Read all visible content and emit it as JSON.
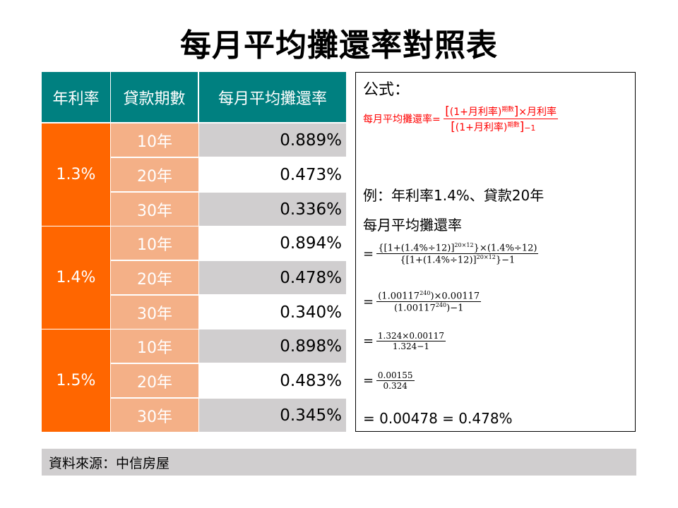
{
  "title": "每月平均攤還率對照表",
  "table": {
    "headers": [
      "年利率",
      "貸款期數",
      "每月平均攤還率"
    ],
    "groups": [
      {
        "rate": "1.3%",
        "rows": [
          {
            "term": "10年",
            "value": "0.889%"
          },
          {
            "term": "20年",
            "value": "0.473%"
          },
          {
            "term": "30年",
            "value": "0.336%"
          }
        ]
      },
      {
        "rate": "1.4%",
        "rows": [
          {
            "term": "10年",
            "value": "0.894%"
          },
          {
            "term": "20年",
            "value": "0.478%"
          },
          {
            "term": "30年",
            "value": "0.340%"
          }
        ]
      },
      {
        "rate": "1.5%",
        "rows": [
          {
            "term": "10年",
            "value": "0.898%"
          },
          {
            "term": "20年",
            "value": "0.483%"
          },
          {
            "term": "30年",
            "value": "0.345%"
          }
        ]
      }
    ],
    "colors": {
      "header": "#008080",
      "rate": "#ff6600",
      "term": "#f4b087",
      "stripe": "#d0cecf"
    }
  },
  "formula": {
    "label": "公式：",
    "lhs": "每月平均攤還率=",
    "num_open": "(1+月利率)",
    "num_exp": "期數",
    "num_tail": "×月利率",
    "den_open": "(1+月利率)",
    "den_exp": "期數",
    "den_tail": "−1",
    "color": "#ff0000"
  },
  "example": {
    "line1": "例：年利率1.4%、貸款20年",
    "line2": "每月平均攤還率",
    "step1": {
      "num_a": "{[1+(1.4%÷12)]",
      "num_exp": "20×12",
      "num_b": "}×(1.4%÷12)",
      "den_a": "{[1+(1.4%÷12)]",
      "den_exp": "20×12",
      "den_b": "}−1"
    },
    "step2": {
      "num_a": "(1.00117",
      "num_exp": "240",
      "num_b": ")×0.00117",
      "den_a": "(1.00117",
      "den_exp": "240",
      "den_b": ")−1"
    },
    "step3": {
      "num": "1.324×0.00117",
      "den": "1.324−1"
    },
    "step4": {
      "num": "0.00155",
      "den": "0.324"
    },
    "eq": "=",
    "result": "= 0.00478 = 0.478%"
  },
  "source": "資料來源：中信房屋"
}
